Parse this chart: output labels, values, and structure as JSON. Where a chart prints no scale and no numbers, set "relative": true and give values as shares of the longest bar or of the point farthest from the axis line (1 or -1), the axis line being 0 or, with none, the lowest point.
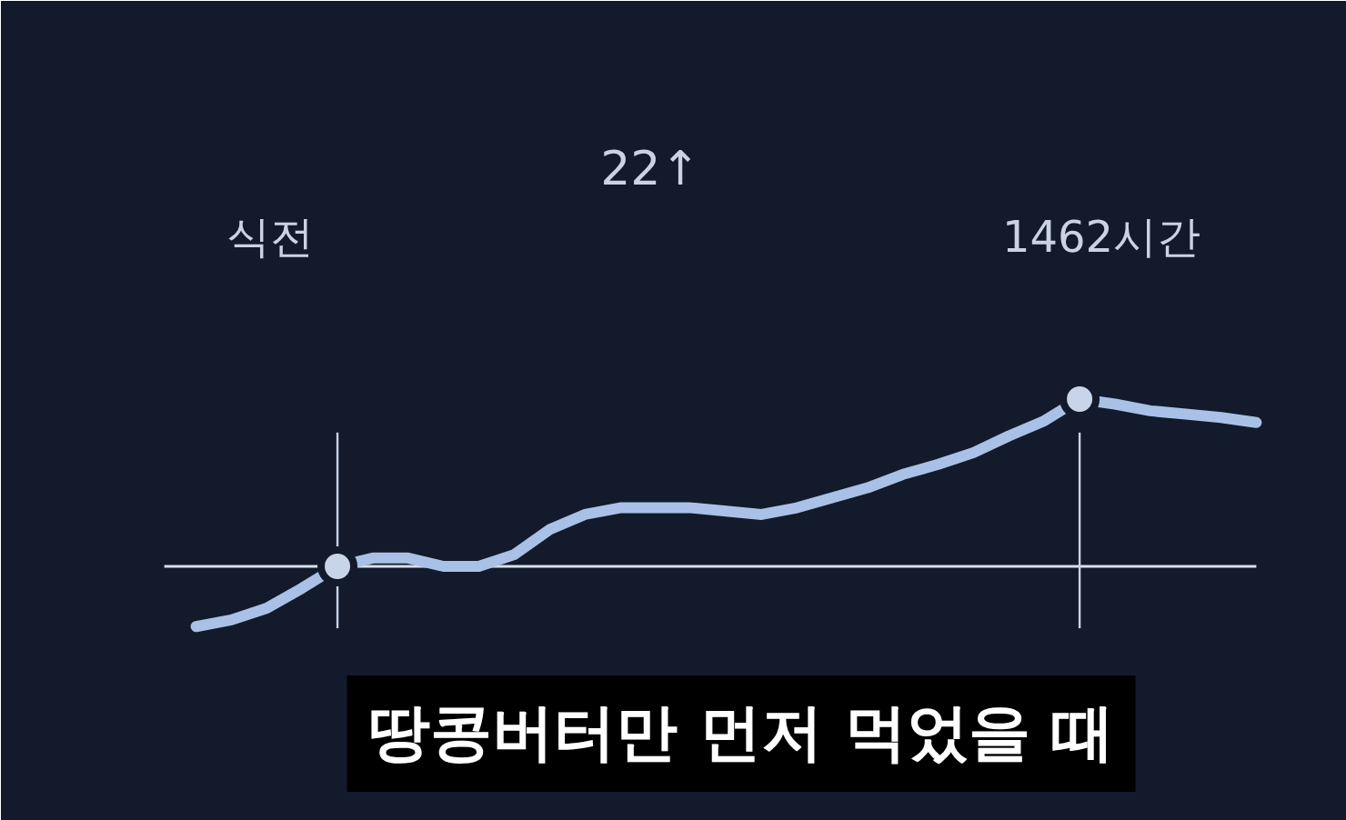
{
  "chart_data": {
    "type": "line",
    "relative": true,
    "categories": [
      null,
      null,
      null,
      null,
      null,
      null,
      null,
      null,
      null,
      null,
      null,
      null,
      null,
      null,
      null,
      null,
      null,
      null,
      null,
      null,
      null,
      null,
      null,
      null,
      null,
      null,
      null,
      null,
      null,
      null,
      null
    ],
    "series": [
      {
        "color": "#a9c1e6",
        "values": [
          -0.36,
          -0.32,
          -0.25,
          -0.13,
          0,
          0.05,
          0.05,
          0,
          0,
          0.07,
          0.22,
          0.31,
          0.35,
          0.35,
          0.35,
          0.33,
          0.31,
          0.35,
          0.41,
          0.47,
          0.55,
          0.61,
          0.68,
          0.78,
          0.87,
          1,
          0.97,
          0.93,
          0.91,
          0.89,
          0.86
        ]
      }
    ],
    "grid": false,
    "annotations": [
      "식전",
      "22↑",
      "1462시간",
      "땅콩버터만 먼저 먹었을 때"
    ]
  }
}
